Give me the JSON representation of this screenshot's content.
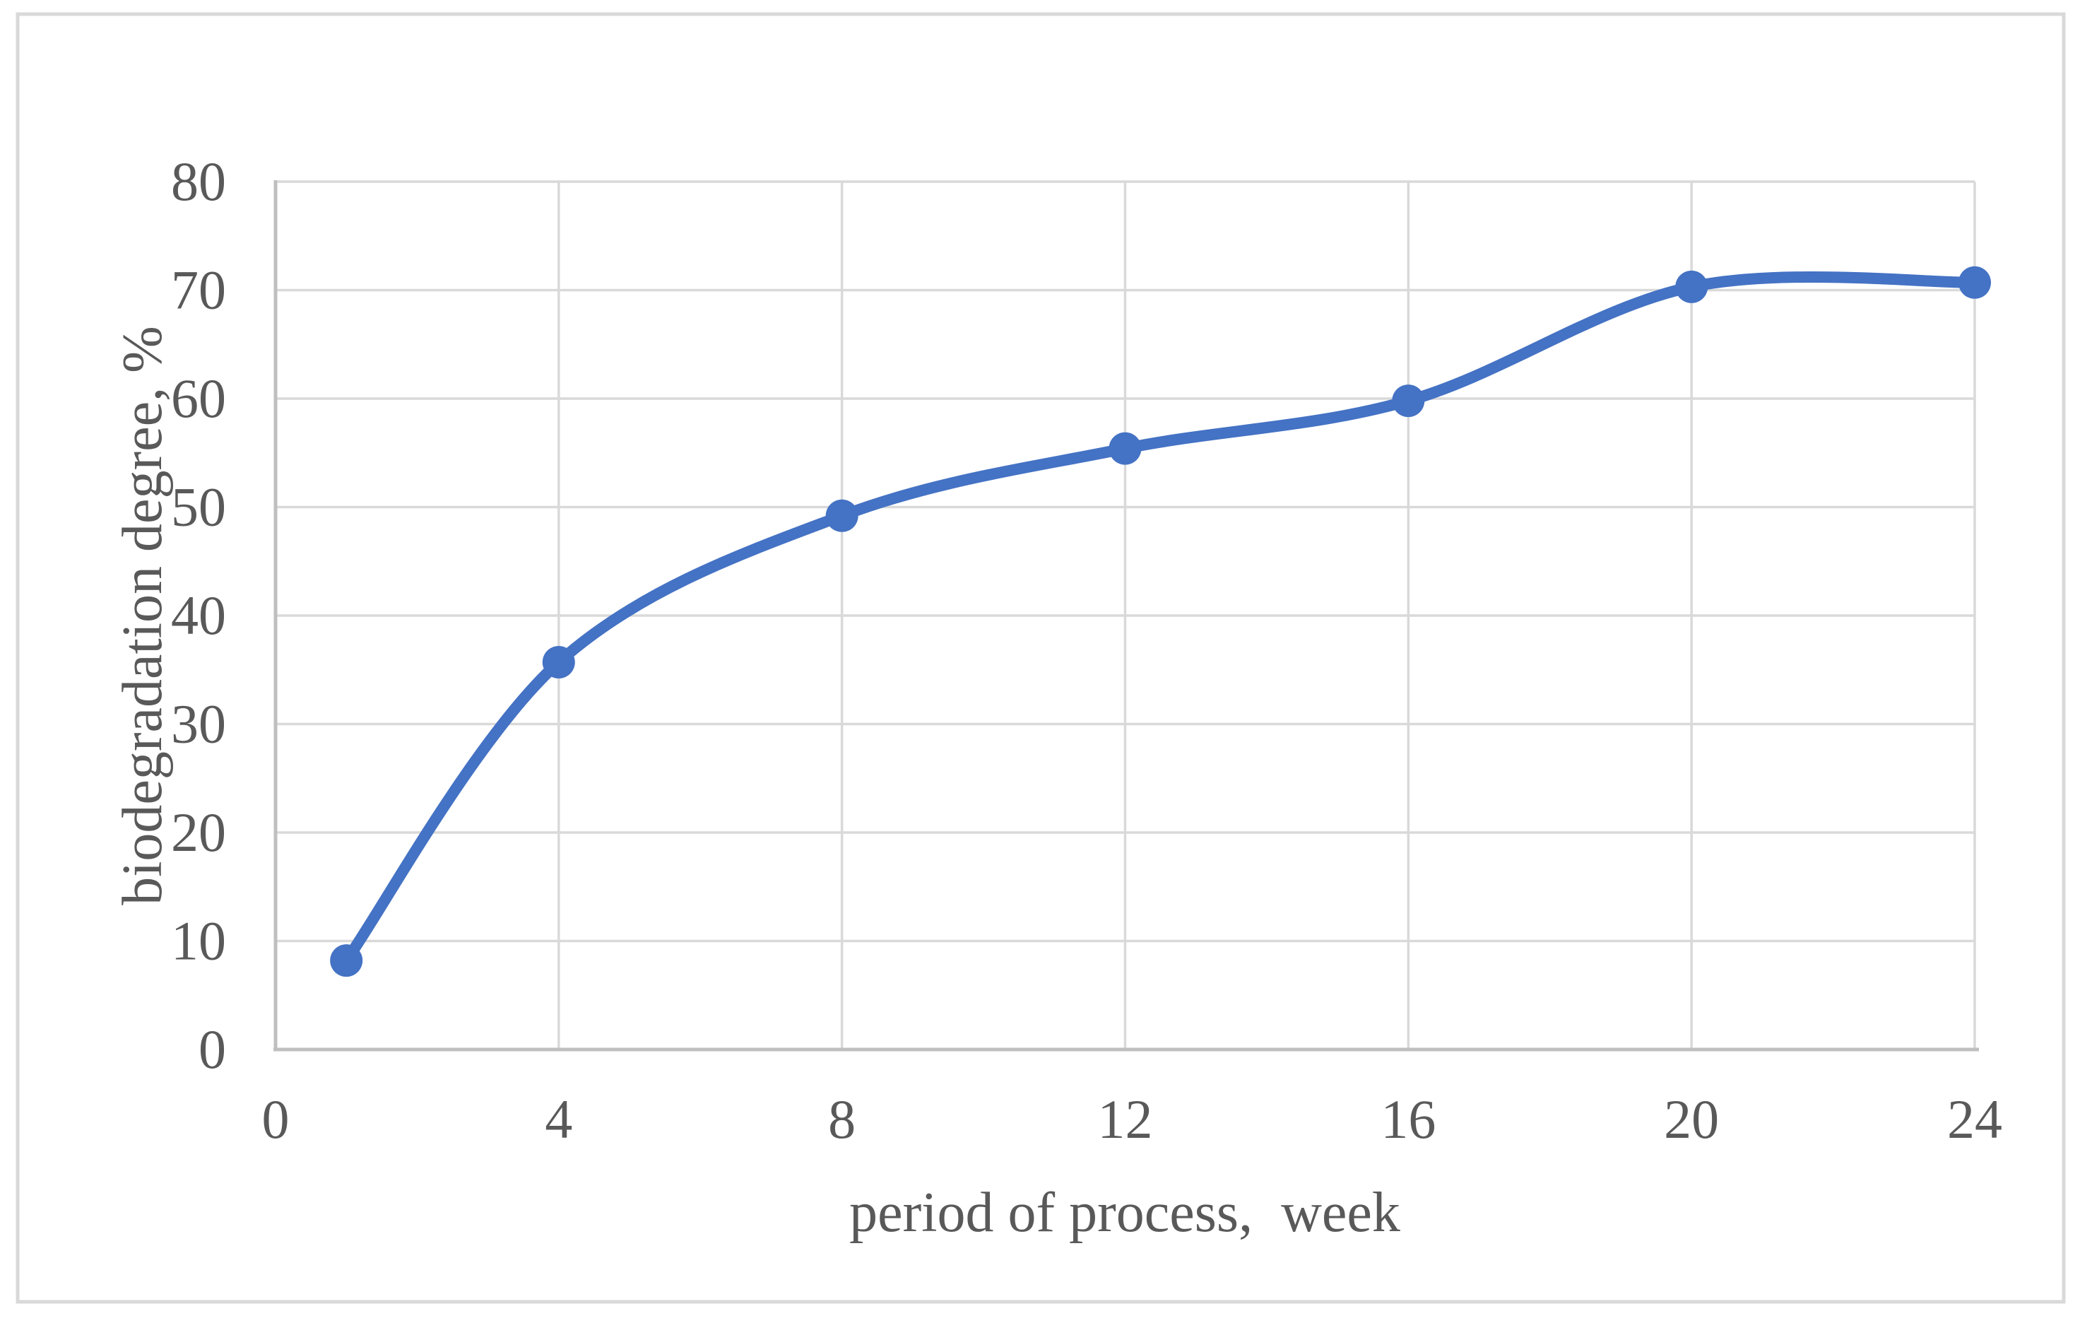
{
  "chart_data": {
    "type": "line",
    "title": "",
    "xlabel": "period of process,  week",
    "ylabel": "biodegradation degree, %",
    "x": [
      1,
      4,
      8,
      12,
      16,
      20,
      24
    ],
    "series": [
      {
        "name": "biodegradation degree",
        "values": [
          8.2,
          35.7,
          49.2,
          55.4,
          59.8,
          70.3,
          70.7
        ]
      }
    ],
    "xlim": [
      0,
      24
    ],
    "ylim": [
      0,
      80
    ],
    "xticks": [
      0,
      4,
      8,
      12,
      16,
      20,
      24
    ],
    "yticks": [
      0,
      10,
      20,
      30,
      40,
      50,
      60,
      70,
      80
    ],
    "x_tick_labels": [
      "0",
      "4",
      "8",
      "12",
      "16",
      "20",
      "24"
    ],
    "y_tick_labels": [
      "0",
      "10",
      "20",
      "30",
      "40",
      "50",
      "60",
      "70",
      "80"
    ],
    "grid": true,
    "legend": false,
    "smooth": true,
    "marker": "circle",
    "colors": {
      "line": "#4472C4",
      "marker": "#4472C4",
      "gridline": "#D9D9D9",
      "axis_line": "#BFBFBF",
      "tick_label": "#595959",
      "axis_title": "#595959",
      "figure_border": "#D9D9D9",
      "background": "#FFFFFF"
    }
  }
}
